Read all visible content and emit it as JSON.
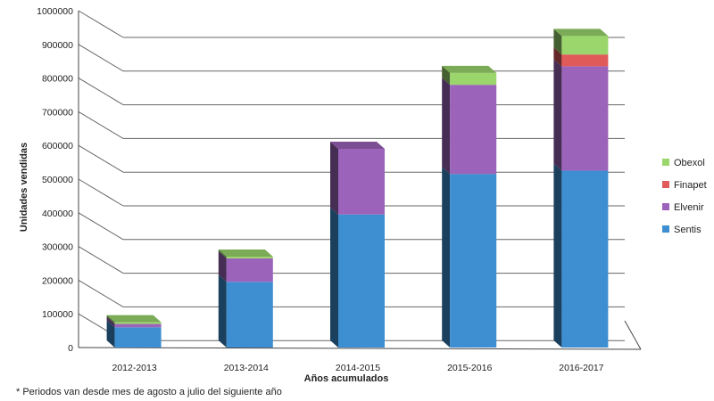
{
  "chart_data": {
    "type": "bar",
    "stacked": true,
    "three_d": true,
    "categories": [
      "2012-2013",
      "2013-2014",
      "2014-2015",
      "2015-2016",
      "2016-2017"
    ],
    "series": [
      {
        "name": "Sentis",
        "values": [
          60000,
          195000,
          395000,
          515000,
          525000
        ],
        "color": "#3d8fd1"
      },
      {
        "name": "Elvenir",
        "values": [
          10000,
          70000,
          195000,
          265000,
          310000
        ],
        "color": "#9b63b9"
      },
      {
        "name": "Finapet",
        "values": [
          0,
          0,
          0,
          0,
          35000
        ],
        "color": "#e05a5a"
      },
      {
        "name": "Obexol",
        "values": [
          5000,
          5000,
          0,
          35000,
          55000
        ],
        "color": "#9ad66b"
      }
    ],
    "xlabel": "Años acumulados",
    "ylabel": "Unidades vendidas",
    "ylim": [
      0,
      1000000
    ],
    "yticks": [
      "0",
      "100000",
      "200000",
      "300000",
      "400000",
      "500000",
      "600000",
      "700000",
      "800000",
      "900000",
      "1000000"
    ],
    "grid": true,
    "legend_position": "right",
    "legend_order": [
      "Obexol",
      "Finapet",
      "Elvenir",
      "Sentis"
    ]
  },
  "footnote": "* Periodos van desde mes de agosto a julio del siguiente año",
  "colors": {
    "grid": "#666666",
    "axis": "#444444"
  }
}
